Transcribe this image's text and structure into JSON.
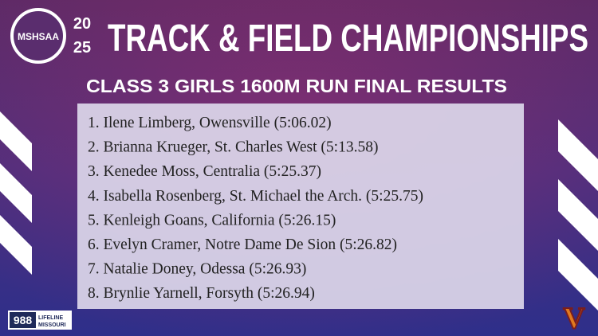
{
  "logo": {
    "text": "MSHSAA"
  },
  "year_lines": [
    "20",
    "25"
  ],
  "header": {
    "title": "TRACK & FIELD CHAMPIONSHIPS",
    "subtitle": "CLASS 3 GIRLS 1600M RUN FINAL RESULTS"
  },
  "results": [
    "1. Ilene Limberg, Owensville (5:06.02)",
    "2. Brianna Krueger, St. Charles West (5:13.58)",
    "3. Kenedee Moss, Centralia (5:25.37)",
    "4. Isabella Rosenberg, St. Michael the Arch. (5:25.75)",
    "5. Kenleigh Goans, California (5:26.15)",
    "6. Evelyn Cramer, Notre Dame De Sion (5:26.82)",
    "7. Natalie Doney, Odessa (5:26.93)",
    "8. Brynlie Yarnell, Forsyth (5:26.94)"
  ],
  "footer": {
    "badge_number": "988",
    "badge_line1": "LIFELINE",
    "badge_line2": "MISSOURI",
    "corner_logo": "V"
  }
}
